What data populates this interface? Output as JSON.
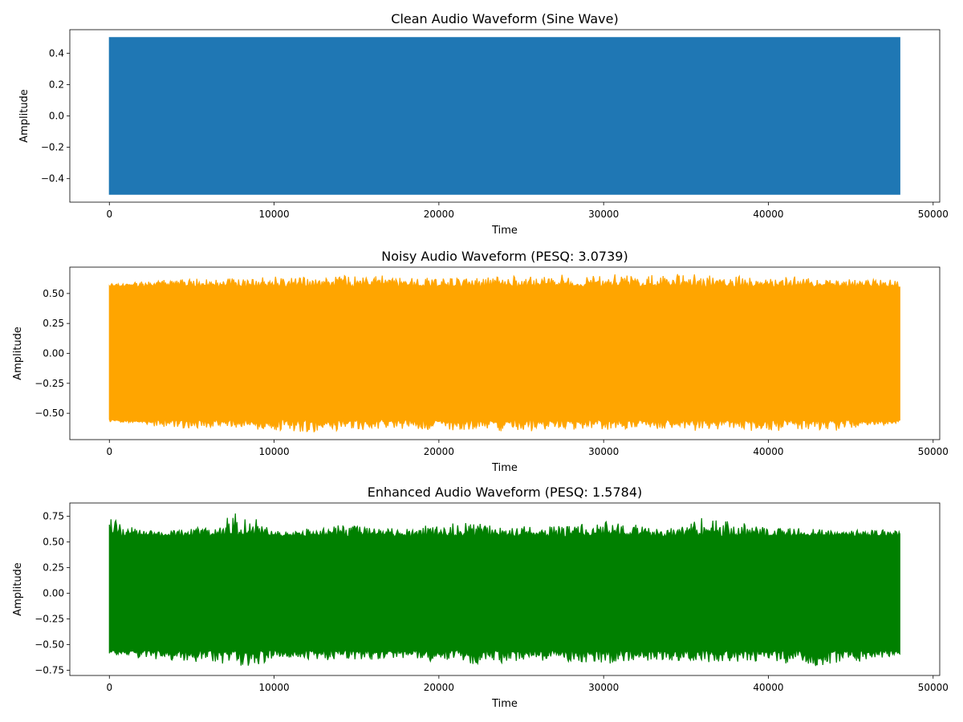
{
  "chart_data": [
    {
      "type": "line",
      "title": "Clean Audio Waveform (Sine Wave)",
      "xlabel": "Time",
      "ylabel": "Amplitude",
      "xlim": [
        -2400,
        50400
      ],
      "ylim": [
        -0.55,
        0.55
      ],
      "xticks": [
        0,
        10000,
        20000,
        30000,
        40000,
        50000
      ],
      "xtick_labels": [
        "0",
        "10000",
        "20000",
        "30000",
        "40000",
        "50000"
      ],
      "yticks": [
        -0.4,
        -0.2,
        0.0,
        0.2,
        0.4
      ],
      "ytick_labels": [
        "−0.4",
        "−0.2",
        "0.0",
        "0.2",
        "0.4"
      ],
      "grid": false,
      "series": [
        {
          "color": "#1f77b4",
          "x_range": [
            0,
            48000
          ],
          "envelope_x": [
            0,
            8000,
            16000,
            24000,
            32000,
            40000,
            48000
          ],
          "envelope_max": [
            0.5,
            0.5,
            0.5,
            0.5,
            0.5,
            0.5,
            0.5
          ],
          "envelope_min": [
            -0.5,
            -0.5,
            -0.5,
            -0.5,
            -0.5,
            -0.5,
            -0.5
          ]
        }
      ]
    },
    {
      "type": "line",
      "title": "Noisy Audio Waveform (PESQ: 3.0739)",
      "xlabel": "Time",
      "ylabel": "Amplitude",
      "xlim": [
        -2400,
        50400
      ],
      "ylim": [
        -0.72,
        0.72
      ],
      "xticks": [
        0,
        10000,
        20000,
        30000,
        40000,
        50000
      ],
      "xtick_labels": [
        "0",
        "10000",
        "20000",
        "30000",
        "40000",
        "50000"
      ],
      "yticks": [
        -0.5,
        -0.25,
        0.0,
        0.25,
        0.5
      ],
      "ytick_labels": [
        "−0.50",
        "−0.25",
        "0.00",
        "0.25",
        "0.50"
      ],
      "grid": false,
      "series": [
        {
          "color": "#ffa500",
          "x_range": [
            0,
            48000
          ],
          "envelope_x": [
            0,
            4000,
            8000,
            12000,
            16000,
            20000,
            24000,
            28000,
            32000,
            36000,
            40000,
            44000,
            48000
          ],
          "envelope_max": [
            0.58,
            0.62,
            0.63,
            0.64,
            0.66,
            0.63,
            0.64,
            0.65,
            0.66,
            0.67,
            0.64,
            0.64,
            0.6
          ],
          "envelope_min": [
            -0.56,
            -0.62,
            -0.63,
            -0.66,
            -0.63,
            -0.64,
            -0.65,
            -0.64,
            -0.63,
            -0.64,
            -0.64,
            -0.65,
            -0.58
          ]
        }
      ]
    },
    {
      "type": "line",
      "title": "Enhanced Audio Waveform (PESQ: 1.5784)",
      "xlabel": "Time",
      "ylabel": "Amplitude",
      "xlim": [
        -2400,
        50400
      ],
      "ylim": [
        -0.8,
        0.88
      ],
      "xticks": [
        0,
        10000,
        20000,
        30000,
        40000,
        50000
      ],
      "xtick_labels": [
        "0",
        "10000",
        "20000",
        "30000",
        "40000",
        "50000"
      ],
      "yticks": [
        -0.75,
        -0.5,
        -0.25,
        0.0,
        0.25,
        0.5,
        0.75
      ],
      "ytick_labels": [
        "−0.75",
        "−0.50",
        "−0.25",
        "0.00",
        "0.25",
        "0.50",
        "0.75"
      ],
      "grid": false,
      "series": [
        {
          "color": "#008000",
          "x_range": [
            0,
            48000
          ],
          "envelope_x": [
            0,
            2000,
            4000,
            6000,
            7700,
            9000,
            10000,
            14000,
            18000,
            22000,
            26000,
            30000,
            34000,
            36000,
            40000,
            43000,
            46000,
            48000
          ],
          "envelope_max": [
            0.74,
            0.62,
            0.63,
            0.66,
            0.8,
            0.72,
            0.6,
            0.66,
            0.63,
            0.7,
            0.64,
            0.7,
            0.64,
            0.73,
            0.64,
            0.63,
            0.62,
            0.62
          ],
          "envelope_min": [
            -0.6,
            -0.64,
            -0.66,
            -0.67,
            -0.7,
            -0.73,
            -0.62,
            -0.66,
            -0.64,
            -0.7,
            -0.65,
            -0.68,
            -0.65,
            -0.68,
            -0.66,
            -0.72,
            -0.66,
            -0.6
          ]
        }
      ]
    }
  ]
}
